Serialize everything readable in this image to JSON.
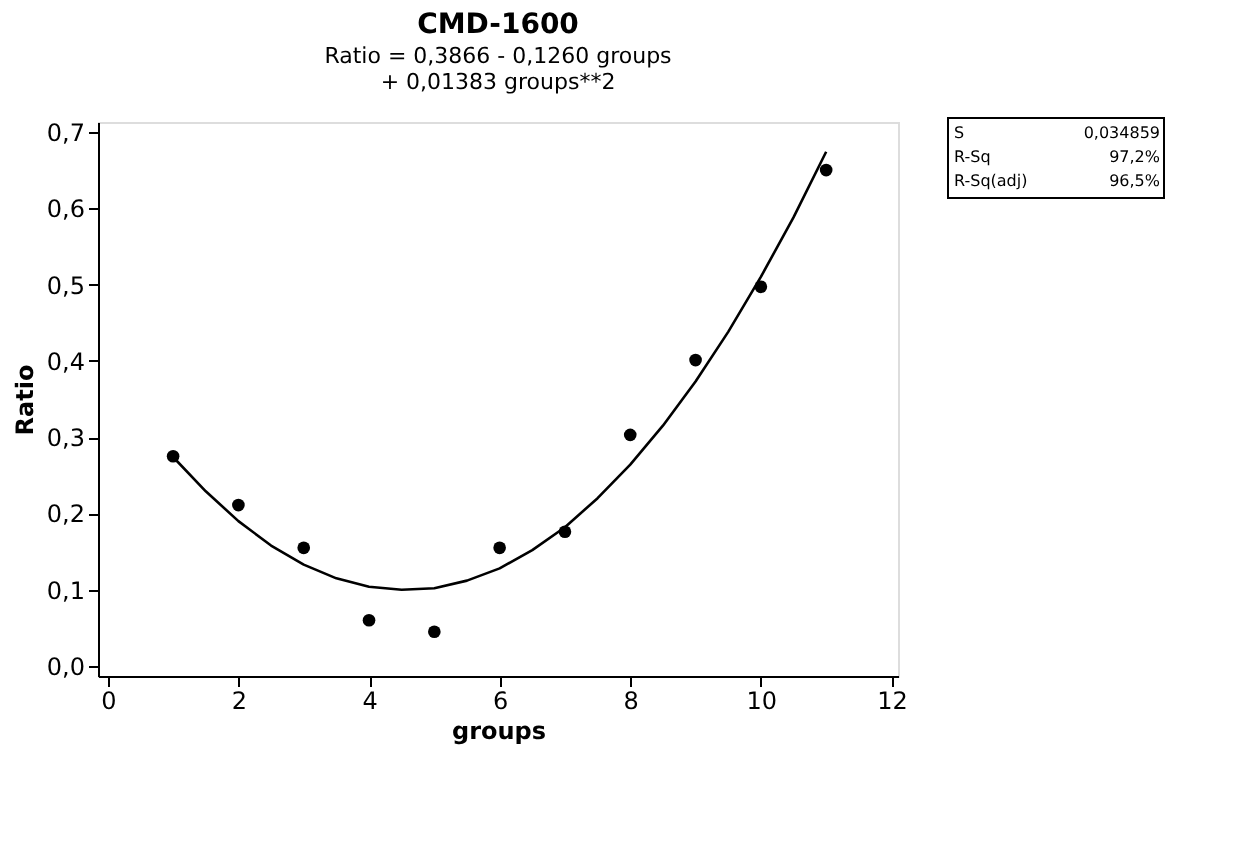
{
  "chart_data": {
    "type": "scatter",
    "title": "CMD-1600",
    "subtitle": "Ratio =  0,3866 - 0,1260 groups\n+ 0,01383 groups**2",
    "xlabel": "groups",
    "ylabel": "Ratio",
    "x": [
      1,
      2,
      3,
      4,
      5,
      6,
      7,
      8,
      9,
      10,
      11
    ],
    "series": [
      {
        "color": "#000000",
        "marker": "circle",
        "values": [
          0.275,
          0.211,
          0.155,
          0.06,
          0.045,
          0.155,
          0.176,
          0.303,
          0.401,
          0.497,
          0.65
        ]
      },
      {
        "type": "line",
        "color": "#000000",
        "line_style": "solid",
        "x": [
          1,
          1.5,
          2,
          2.5,
          3,
          3.5,
          4,
          4.5,
          5,
          5.5,
          6,
          6.5,
          7,
          7.5,
          8,
          8.5,
          9,
          9.5,
          10,
          10.5,
          11
        ],
        "values": [
          0.274,
          0.229,
          0.19,
          0.158,
          0.133,
          0.115,
          0.104,
          0.1,
          0.102,
          0.112,
          0.128,
          0.152,
          0.182,
          0.22,
          0.264,
          0.315,
          0.373,
          0.438,
          0.51,
          0.588,
          0.674
        ]
      }
    ],
    "xlim": [
      -0.15,
      12.1
    ],
    "ylim": [
      -0.013,
      0.713
    ],
    "xticks": [
      0,
      2,
      4,
      6,
      8,
      10,
      12
    ],
    "yticks": [
      {
        "value": 0,
        "label": "0,0"
      },
      {
        "value": 0.1,
        "label": "0,1"
      },
      {
        "value": 0.2,
        "label": "0,2"
      },
      {
        "value": 0.3,
        "label": "0,3"
      },
      {
        "value": 0.4,
        "label": "0,4"
      },
      {
        "value": 0.5,
        "label": "0,5"
      },
      {
        "value": 0.6,
        "label": "0,6"
      },
      {
        "value": 0.7,
        "label": "0,7"
      }
    ],
    "grid": false,
    "legend": false,
    "annotations": [
      "S",
      "0,034859",
      "R-Sq",
      "97,2%",
      "R-Sq(adj)",
      "96,5%"
    ]
  }
}
